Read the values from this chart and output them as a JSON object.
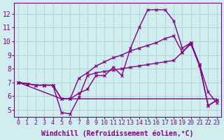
{
  "xlabel": "Windchill (Refroidissement éolien,°C)",
  "x_ticks": [
    0,
    1,
    2,
    3,
    4,
    5,
    6,
    7,
    8,
    9,
    10,
    11,
    12,
    13,
    14,
    15,
    16,
    17,
    18,
    19,
    20,
    21,
    22,
    23
  ],
  "y_ticks": [
    5,
    6,
    7,
    8,
    9,
    10,
    11,
    12
  ],
  "ylim": [
    4.5,
    12.8
  ],
  "xlim": [
    -0.5,
    23.5
  ],
  "line1_x": [
    0,
    1,
    2,
    3,
    4,
    5,
    6,
    7,
    8,
    9,
    10,
    11,
    12,
    13,
    14,
    15,
    16,
    17,
    18,
    19,
    20,
    21,
    22,
    23
  ],
  "line1_y": [
    7.0,
    6.9,
    6.8,
    6.8,
    6.8,
    5.8,
    5.8,
    6.2,
    6.5,
    7.5,
    7.5,
    8.1,
    7.5,
    9.5,
    11.0,
    12.3,
    12.3,
    12.3,
    11.5,
    9.5,
    9.9,
    8.3,
    6.3,
    5.5
  ],
  "line2_x": [
    0,
    1,
    2,
    3,
    4,
    5,
    6,
    7,
    8,
    9,
    10,
    11,
    12,
    13,
    14,
    15,
    16,
    17,
    18,
    19,
    20,
    21,
    22,
    23
  ],
  "line2_y": [
    7.0,
    6.9,
    6.8,
    6.8,
    6.8,
    4.8,
    4.7,
    5.9,
    7.5,
    7.7,
    7.8,
    7.9,
    8.0,
    8.1,
    8.2,
    8.3,
    8.4,
    8.5,
    8.6,
    9.2,
    9.9,
    8.3,
    5.3,
    5.7
  ],
  "line3_x": [
    0,
    1,
    2,
    3,
    4,
    5,
    6,
    7,
    8,
    9,
    10,
    11,
    12,
    13,
    14,
    15,
    16,
    17,
    18,
    19,
    20,
    21,
    22,
    23
  ],
  "line3_y": [
    7.0,
    6.9,
    6.8,
    6.8,
    6.8,
    5.8,
    5.8,
    7.3,
    7.7,
    8.2,
    8.5,
    8.8,
    9.0,
    9.3,
    9.5,
    9.7,
    9.9,
    10.2,
    10.4,
    9.2,
    9.8,
    8.2,
    5.3,
    5.7
  ],
  "line4_x": [
    0,
    5,
    6,
    22,
    23
  ],
  "line4_y": [
    7.0,
    5.8,
    5.8,
    5.8,
    5.8
  ],
  "color": "#800080",
  "bg_color": "#d0eef0",
  "grid_color": "#aacccc",
  "tick_fontsize": 7,
  "label_fontsize": 7
}
